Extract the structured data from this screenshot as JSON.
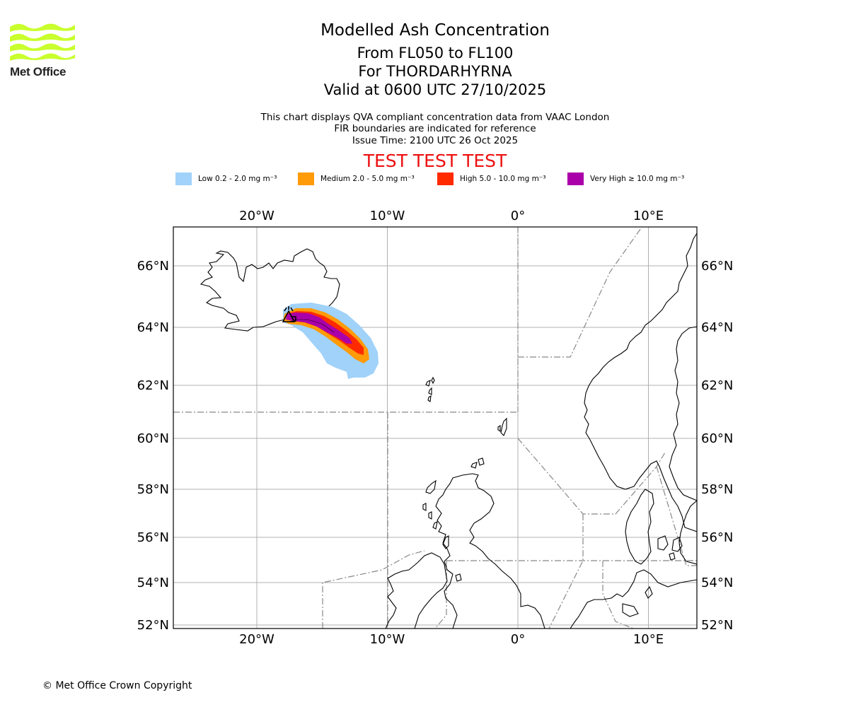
{
  "header": {
    "logo_text": "Met Office",
    "title": "Modelled Ash Concentration",
    "level_range": "From FL050 to FL100",
    "volcano": "For THORDARHYRNA",
    "valid_time": "Valid at 0600 UTC 27/10/2025",
    "info_line1": "This chart displays QVA compliant concentration data from VAAC London",
    "info_line2": "FIR boundaries are indicated for reference",
    "issue_time": "Issue Time: 2100 UTC 26 Oct 2025",
    "test_banner": "TEST TEST TEST"
  },
  "legend": [
    {
      "label": "Low 0.2 - 2.0 mg m⁻³",
      "color": "#a0d2fa"
    },
    {
      "label": "Medium 2.0 - 5.0 mg m⁻³",
      "color": "#ff9a08"
    },
    {
      "label": "High 5.0 - 10.0 mg m⁻³",
      "color": "#ff2a00"
    },
    {
      "label": "Very High ≥ 10.0 mg m⁻³",
      "color": "#aa00aa"
    }
  ],
  "map": {
    "lon_labels": [
      "20°W",
      "10°W",
      "0°",
      "10°E"
    ],
    "lat_labels": [
      "66°N",
      "64°N",
      "62°N",
      "60°N",
      "58°N",
      "56°N",
      "54°N",
      "52°N"
    ],
    "lon_values": [
      -20,
      -10,
      0,
      10
    ],
    "lat_values": [
      66,
      64,
      62,
      60,
      58,
      56,
      54,
      52
    ],
    "extent": {
      "lon_min": -26.5,
      "lon_max": 13.5,
      "lat_min": 52,
      "lat_max": 67.5
    },
    "colors": {
      "grid": "#b0b0b0",
      "coast": "#000000",
      "fir": "#888888"
    }
  },
  "footer": {
    "copyright": "© Met Office Crown Copyright"
  }
}
